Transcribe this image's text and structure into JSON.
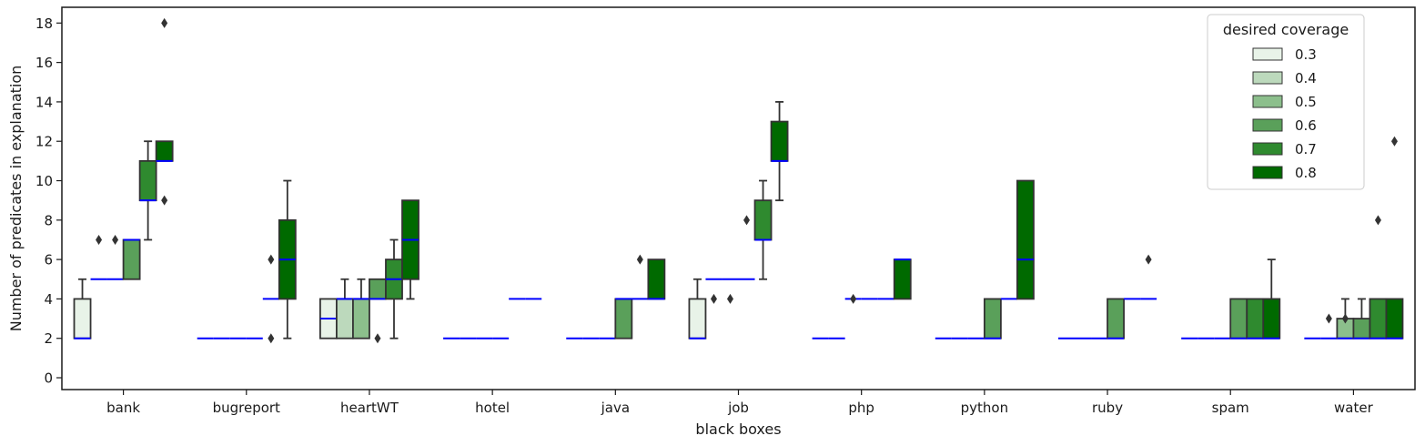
{
  "chart_data": {
    "type": "box",
    "xlabel": "black boxes",
    "ylabel": "Number of predicates in explanation",
    "ylim": [
      -0.6,
      18.8
    ],
    "yticks": [
      0,
      2,
      4,
      6,
      8,
      10,
      12,
      14,
      16,
      18
    ],
    "categories": [
      "bank",
      "bugreport",
      "heartWT",
      "hotel",
      "java",
      "job",
      "php",
      "python",
      "ruby",
      "spam",
      "water"
    ],
    "legend": {
      "title": "desired coverage",
      "position": "top-right",
      "entries": [
        "0.3",
        "0.4",
        "0.5",
        "0.6",
        "0.7",
        "0.8"
      ]
    },
    "series_colors": [
      "#e8f3e8",
      "#bcd9bc",
      "#8cbf8c",
      "#5aa05a",
      "#2f8a2f",
      "#006a00"
    ],
    "median_color": "#0000ff",
    "boxes": [
      [
        {
          "q1": 2,
          "med": 2,
          "q3": 4,
          "wlo": 2,
          "whi": 5,
          "fliers": []
        },
        {
          "q1": 5,
          "med": 5,
          "q3": 5,
          "wlo": 5,
          "whi": 5,
          "fliers": [
            7
          ]
        },
        {
          "q1": 5,
          "med": 5,
          "q3": 5,
          "wlo": 5,
          "whi": 5,
          "fliers": [
            7
          ]
        },
        {
          "q1": 5,
          "med": 7,
          "q3": 7,
          "wlo": 5,
          "whi": 7,
          "fliers": []
        },
        {
          "q1": 9,
          "med": 9,
          "q3": 11,
          "wlo": 7,
          "whi": 12,
          "fliers": []
        },
        {
          "q1": 11,
          "med": 11,
          "q3": 12,
          "wlo": 11,
          "whi": 12,
          "fliers": [
            9,
            18
          ]
        }
      ],
      [
        {
          "q1": 2,
          "med": 2,
          "q3": 2,
          "wlo": 2,
          "whi": 2,
          "fliers": []
        },
        {
          "q1": 2,
          "med": 2,
          "q3": 2,
          "wlo": 2,
          "whi": 2,
          "fliers": []
        },
        {
          "q1": 2,
          "med": 2,
          "q3": 2,
          "wlo": 2,
          "whi": 2,
          "fliers": []
        },
        {
          "q1": 2,
          "med": 2,
          "q3": 2,
          "wlo": 2,
          "whi": 2,
          "fliers": []
        },
        {
          "q1": 4,
          "med": 4,
          "q3": 4,
          "wlo": 4,
          "whi": 4,
          "fliers": [
            2,
            6
          ]
        },
        {
          "q1": 4,
          "med": 6,
          "q3": 8,
          "wlo": 2,
          "whi": 10,
          "fliers": []
        }
      ],
      [
        {
          "q1": 2,
          "med": 3,
          "q3": 4,
          "wlo": 2,
          "whi": 4,
          "fliers": []
        },
        {
          "q1": 2,
          "med": 4,
          "q3": 4,
          "wlo": 2,
          "whi": 5,
          "fliers": []
        },
        {
          "q1": 2,
          "med": 4,
          "q3": 4,
          "wlo": 2,
          "whi": 5,
          "fliers": []
        },
        {
          "q1": 4,
          "med": 4,
          "q3": 5,
          "wlo": 4,
          "whi": 5,
          "fliers": [
            2
          ]
        },
        {
          "q1": 4,
          "med": 5,
          "q3": 6,
          "wlo": 2,
          "whi": 7,
          "fliers": []
        },
        {
          "q1": 5,
          "med": 7,
          "q3": 9,
          "wlo": 4,
          "whi": 9,
          "fliers": []
        }
      ],
      [
        {
          "q1": 2,
          "med": 2,
          "q3": 2,
          "wlo": 2,
          "whi": 2,
          "fliers": []
        },
        {
          "q1": 2,
          "med": 2,
          "q3": 2,
          "wlo": 2,
          "whi": 2,
          "fliers": []
        },
        {
          "q1": 2,
          "med": 2,
          "q3": 2,
          "wlo": 2,
          "whi": 2,
          "fliers": []
        },
        {
          "q1": 2,
          "med": 2,
          "q3": 2,
          "wlo": 2,
          "whi": 2,
          "fliers": []
        },
        {
          "q1": 4,
          "med": 4,
          "q3": 4,
          "wlo": 4,
          "whi": 4,
          "fliers": []
        },
        {
          "q1": 4,
          "med": 4,
          "q3": 4,
          "wlo": 4,
          "whi": 4,
          "fliers": []
        }
      ],
      [
        {
          "q1": 2,
          "med": 2,
          "q3": 2,
          "wlo": 2,
          "whi": 2,
          "fliers": []
        },
        {
          "q1": 2,
          "med": 2,
          "q3": 2,
          "wlo": 2,
          "whi": 2,
          "fliers": []
        },
        {
          "q1": 2,
          "med": 2,
          "q3": 2,
          "wlo": 2,
          "whi": 2,
          "fliers": []
        },
        {
          "q1": 2,
          "med": 4,
          "q3": 4,
          "wlo": 2,
          "whi": 4,
          "fliers": []
        },
        {
          "q1": 4,
          "med": 4,
          "q3": 4,
          "wlo": 4,
          "whi": 4,
          "fliers": [
            6
          ]
        },
        {
          "q1": 4,
          "med": 4,
          "q3": 6,
          "wlo": 4,
          "whi": 6,
          "fliers": []
        }
      ],
      [
        {
          "q1": 2,
          "med": 2,
          "q3": 4,
          "wlo": 2,
          "whi": 5,
          "fliers": []
        },
        {
          "q1": 5,
          "med": 5,
          "q3": 5,
          "wlo": 5,
          "whi": 5,
          "fliers": [
            4
          ]
        },
        {
          "q1": 5,
          "med": 5,
          "q3": 5,
          "wlo": 5,
          "whi": 5,
          "fliers": [
            4
          ]
        },
        {
          "q1": 5,
          "med": 5,
          "q3": 5,
          "wlo": 5,
          "whi": 5,
          "fliers": [
            8
          ]
        },
        {
          "q1": 7,
          "med": 7,
          "q3": 9,
          "wlo": 5,
          "whi": 10,
          "fliers": []
        },
        {
          "q1": 11,
          "med": 11,
          "q3": 13,
          "wlo": 9,
          "whi": 14,
          "fliers": []
        }
      ],
      [
        {
          "q1": 2,
          "med": 2,
          "q3": 2,
          "wlo": 2,
          "whi": 2,
          "fliers": []
        },
        {
          "q1": 2,
          "med": 2,
          "q3": 2,
          "wlo": 2,
          "whi": 2,
          "fliers": []
        },
        {
          "q1": 4,
          "med": 4,
          "q3": 4,
          "wlo": 4,
          "whi": 4,
          "fliers": [
            4
          ]
        },
        {
          "q1": 4,
          "med": 4,
          "q3": 4,
          "wlo": 4,
          "whi": 4,
          "fliers": []
        },
        {
          "q1": 4,
          "med": 4,
          "q3": 4,
          "wlo": 4,
          "whi": 4,
          "fliers": []
        },
        {
          "q1": 4,
          "med": 6,
          "q3": 6,
          "wlo": 4,
          "whi": 6,
          "fliers": []
        }
      ],
      [
        {
          "q1": 2,
          "med": 2,
          "q3": 2,
          "wlo": 2,
          "whi": 2,
          "fliers": []
        },
        {
          "q1": 2,
          "med": 2,
          "q3": 2,
          "wlo": 2,
          "whi": 2,
          "fliers": []
        },
        {
          "q1": 2,
          "med": 2,
          "q3": 2,
          "wlo": 2,
          "whi": 2,
          "fliers": []
        },
        {
          "q1": 2,
          "med": 2,
          "q3": 4,
          "wlo": 2,
          "whi": 4,
          "fliers": []
        },
        {
          "q1": 4,
          "med": 4,
          "q3": 4,
          "wlo": 4,
          "whi": 4,
          "fliers": []
        },
        {
          "q1": 4,
          "med": 6,
          "q3": 10,
          "wlo": 4,
          "whi": 10,
          "fliers": []
        }
      ],
      [
        {
          "q1": 2,
          "med": 2,
          "q3": 2,
          "wlo": 2,
          "whi": 2,
          "fliers": []
        },
        {
          "q1": 2,
          "med": 2,
          "q3": 2,
          "wlo": 2,
          "whi": 2,
          "fliers": []
        },
        {
          "q1": 2,
          "med": 2,
          "q3": 2,
          "wlo": 2,
          "whi": 2,
          "fliers": []
        },
        {
          "q1": 2,
          "med": 2,
          "q3": 4,
          "wlo": 2,
          "whi": 4,
          "fliers": []
        },
        {
          "q1": 4,
          "med": 4,
          "q3": 4,
          "wlo": 4,
          "whi": 4,
          "fliers": []
        },
        {
          "q1": 4,
          "med": 4,
          "q3": 4,
          "wlo": 4,
          "whi": 4,
          "fliers": [
            6
          ]
        }
      ],
      [
        {
          "q1": 2,
          "med": 2,
          "q3": 2,
          "wlo": 2,
          "whi": 2,
          "fliers": []
        },
        {
          "q1": 2,
          "med": 2,
          "q3": 2,
          "wlo": 2,
          "whi": 2,
          "fliers": []
        },
        {
          "q1": 2,
          "med": 2,
          "q3": 2,
          "wlo": 2,
          "whi": 2,
          "fliers": []
        },
        {
          "q1": 2,
          "med": 2,
          "q3": 4,
          "wlo": 2,
          "whi": 4,
          "fliers": []
        },
        {
          "q1": 2,
          "med": 2,
          "q3": 4,
          "wlo": 2,
          "whi": 4,
          "fliers": []
        },
        {
          "q1": 2,
          "med": 2,
          "q3": 4,
          "wlo": 2,
          "whi": 6,
          "fliers": []
        }
      ],
      [
        {
          "q1": 2,
          "med": 2,
          "q3": 2,
          "wlo": 2,
          "whi": 2,
          "fliers": []
        },
        {
          "q1": 2,
          "med": 2,
          "q3": 2,
          "wlo": 2,
          "whi": 2,
          "fliers": [
            3
          ]
        },
        {
          "q1": 2,
          "med": 2,
          "q3": 3,
          "wlo": 2,
          "whi": 4,
          "fliers": [
            3
          ]
        },
        {
          "q1": 2,
          "med": 2,
          "q3": 3,
          "wlo": 2,
          "whi": 4,
          "fliers": []
        },
        {
          "q1": 2,
          "med": 2,
          "q3": 4,
          "wlo": 2,
          "whi": 4,
          "fliers": [
            8
          ]
        },
        {
          "q1": 2,
          "med": 2,
          "q3": 4,
          "wlo": 2,
          "whi": 4,
          "fliers": [
            12
          ]
        }
      ]
    ]
  }
}
